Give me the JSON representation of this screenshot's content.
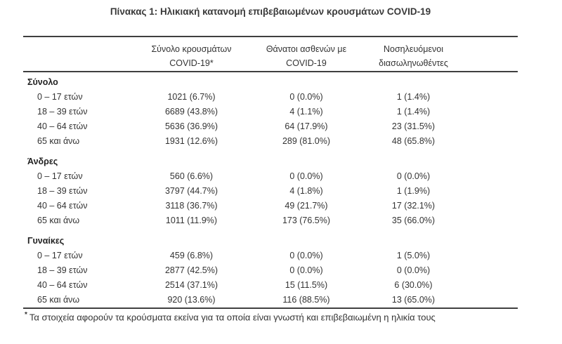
{
  "title": "Πίνακας 1: Ηλικιακή κατανομή επιβεβαιωμένων κρουσμάτων COVID-19",
  "table": {
    "col_headers": [
      {
        "line1": "Σύνολο κρουσμάτων",
        "line2": "COVID-19*"
      },
      {
        "line1": "Θάνατοι ασθενών με",
        "line2": "COVID-19"
      },
      {
        "line1": "Νοσηλευόμενοι",
        "line2": "διασωληνωθέντες"
      }
    ],
    "groups": [
      {
        "label": "Σύνολο",
        "rows": [
          {
            "label": "0 – 17 ετών",
            "cases": "1021 (6.7%)",
            "deaths": "0 (0.0%)",
            "intubated": "1 (1.4%)"
          },
          {
            "label": "18 – 39 ετών",
            "cases": "6689 (43.8%)",
            "deaths": "4 (1.1%)",
            "intubated": "1 (1.4%)"
          },
          {
            "label": "40 – 64 ετών",
            "cases": "5636 (36.9%)",
            "deaths": "64 (17.9%)",
            "intubated": "23 (31.5%)"
          },
          {
            "label": "65 και άνω",
            "cases": "1931 (12.6%)",
            "deaths": "289 (81.0%)",
            "intubated": "48 (65.8%)"
          }
        ]
      },
      {
        "label": "Άνδρες",
        "rows": [
          {
            "label": "0 – 17 ετών",
            "cases": "560 (6.6%)",
            "deaths": "0 (0.0%)",
            "intubated": "0 (0.0%)"
          },
          {
            "label": "18 – 39 ετών",
            "cases": "3797 (44.7%)",
            "deaths": "4 (1.8%)",
            "intubated": "1 (1.9%)"
          },
          {
            "label": "40 – 64 ετών",
            "cases": "3118 (36.7%)",
            "deaths": "49 (21.7%)",
            "intubated": "17 (32.1%)"
          },
          {
            "label": "65 και άνω",
            "cases": "1011 (11.9%)",
            "deaths": "173 (76.5%)",
            "intubated": "35 (66.0%)"
          }
        ]
      },
      {
        "label": "Γυναίκες",
        "rows": [
          {
            "label": "0 – 17 ετών",
            "cases": "459 (6.8%)",
            "deaths": "0 (0.0%)",
            "intubated": "1 (5.0%)"
          },
          {
            "label": "18 – 39 ετών",
            "cases": "2877 (42.5%)",
            "deaths": "0 (0.0%)",
            "intubated": "0 (0.0%)"
          },
          {
            "label": "40 – 64 ετών",
            "cases": "2514 (37.1%)",
            "deaths": "15 (11.5%)",
            "intubated": "6 (30.0%)"
          },
          {
            "label": "65 και άνω",
            "cases": "920 (13.6%)",
            "deaths": "116 (88.5%)",
            "intubated": "13 (65.0%)"
          }
        ]
      }
    ]
  },
  "footnote": {
    "marker": "*",
    "text": "Τα στοιχεία αφορούν τα κρούσματα εκείνα για τα οποία είναι γνωστή και επιβεβαιωμένη η ηλικία τους"
  }
}
